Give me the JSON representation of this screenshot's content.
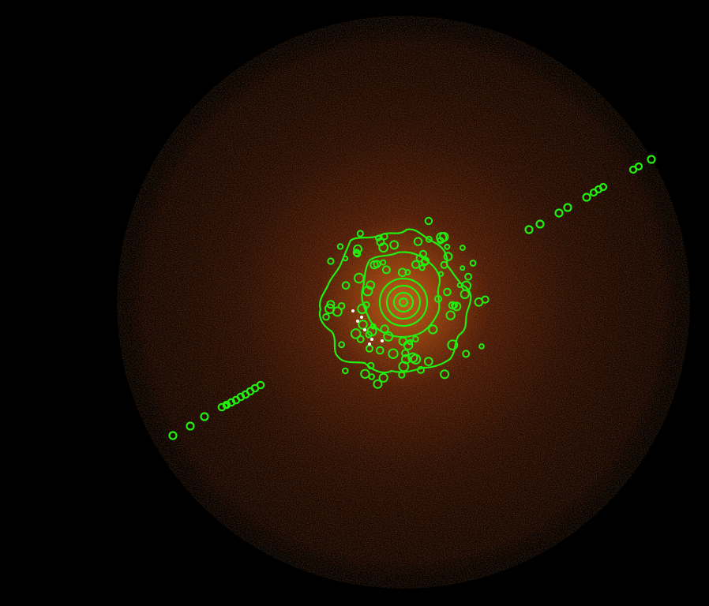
{
  "image": {
    "background_color": "#000000",
    "field_glow_colors": [
      "#c85a1a",
      "#7a2a08",
      "#3a1204",
      "#1a0702"
    ],
    "contour_color": "#22ee11",
    "source_marker_color": "#ffffff"
  },
  "overlays": {
    "central_contour_region": {
      "shape": "irregular-contour-cluster"
    },
    "lower_left_jet_chain": {
      "shape": "circle-chain",
      "count": 13
    },
    "upper_right_jet_chain": {
      "shape": "circle-chain",
      "count": 11
    },
    "inner_contours": {
      "shape": "nested-rings",
      "count": 4
    },
    "source_markers": {
      "shape": "point-markers",
      "count": 7
    }
  }
}
